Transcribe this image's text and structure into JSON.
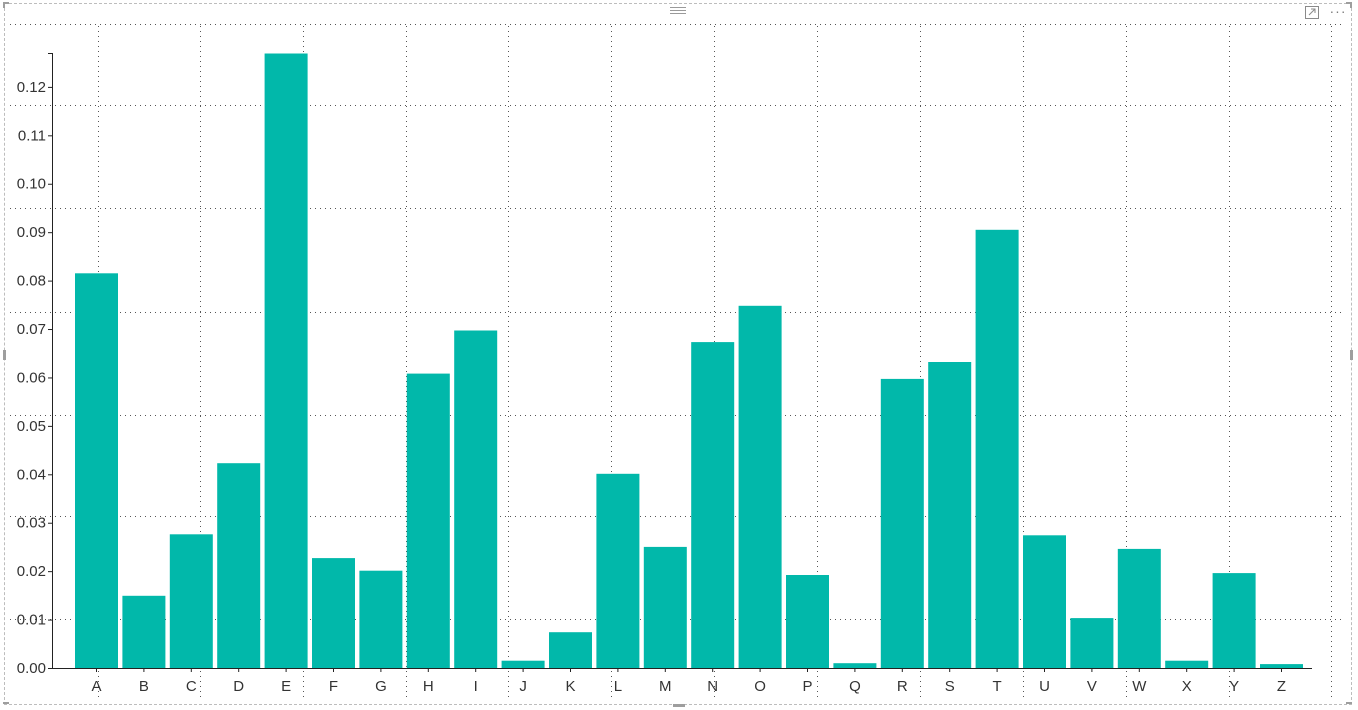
{
  "chart_data": {
    "type": "bar",
    "categories": [
      "A",
      "B",
      "C",
      "D",
      "E",
      "F",
      "G",
      "H",
      "I",
      "J",
      "K",
      "L",
      "M",
      "N",
      "O",
      "P",
      "Q",
      "R",
      "S",
      "T",
      "U",
      "V",
      "W",
      "X",
      "Y",
      "Z"
    ],
    "values": [
      0.0815,
      0.0149,
      0.0276,
      0.0423,
      0.1269,
      0.0227,
      0.0201,
      0.0608,
      0.0697,
      0.0015,
      0.0074,
      0.0401,
      0.025,
      0.0673,
      0.0748,
      0.0192,
      0.001,
      0.0597,
      0.0632,
      0.0905,
      0.0274,
      0.0103,
      0.0246,
      0.0015,
      0.0196,
      0.0008
    ],
    "title": "",
    "xlabel": "",
    "ylabel": "",
    "ylim": [
      0,
      0.127
    ],
    "yticks": [
      "0.00",
      "0.01",
      "0.02",
      "0.03",
      "0.04",
      "0.05",
      "0.06",
      "0.07",
      "0.08",
      "0.09",
      "0.10",
      "0.11",
      "0.12"
    ],
    "grid": true,
    "bar_color": "#01B8AA"
  },
  "header": {
    "focus_icon": "focus-mode-icon",
    "more_icon": "more-options-icon",
    "more_label": "···",
    "drag_icon": "drag-grip-icon"
  }
}
